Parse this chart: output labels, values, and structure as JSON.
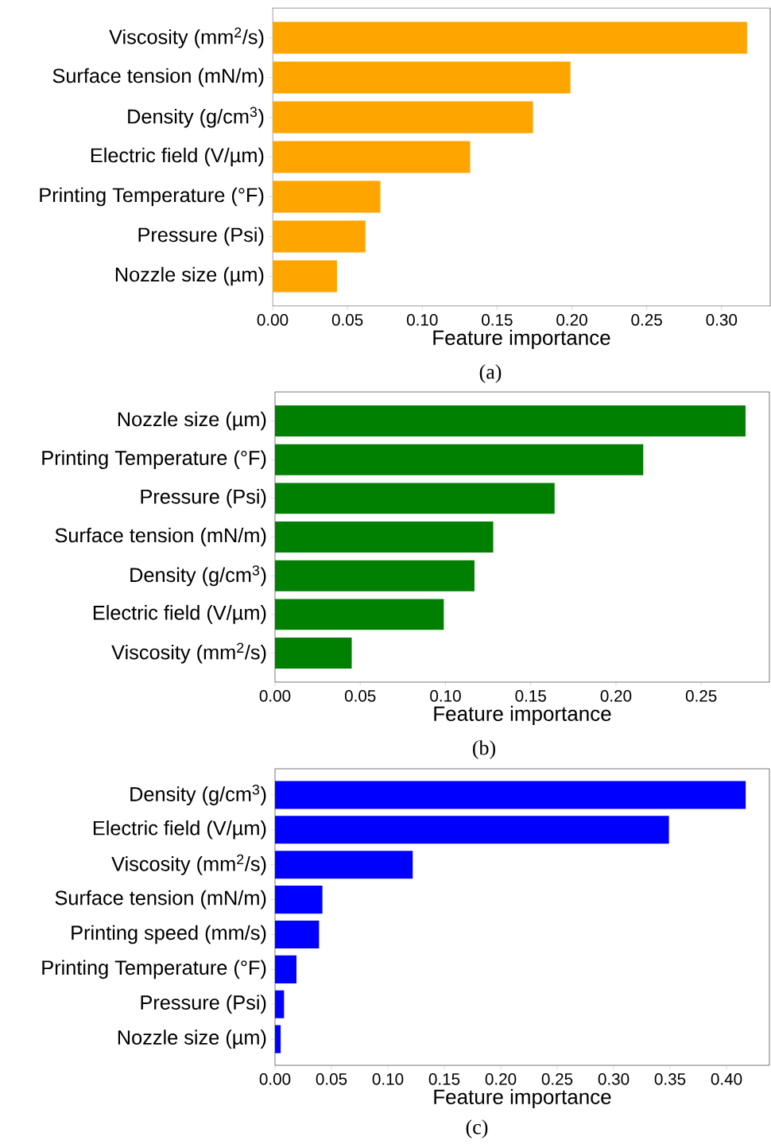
{
  "chart_data": [
    {
      "type": "bar",
      "orientation": "horizontal",
      "color": "#ffa500",
      "xlabel": "Feature importance",
      "annotations": [
        "(a)"
      ],
      "categories": [
        "Viscosity (mm$^{2}$/s)",
        "Surface tension (mN/m)",
        "Density (g/cm$^{3}$)",
        "Electric field (V/µm)",
        "Printing Temperature (°F)",
        "Pressure (Psi)",
        "Nozzle size (µm)"
      ],
      "values": [
        0.317,
        0.199,
        0.174,
        0.132,
        0.072,
        0.062,
        0.043
      ],
      "xlim": [
        0,
        0.3325
      ],
      "xticks": [
        {
          "value": 0,
          "label": "0.00"
        },
        {
          "value": 0.05,
          "label": "0.05"
        },
        {
          "value": 0.1,
          "label": "0.10"
        },
        {
          "value": 0.15,
          "label": "0.15"
        },
        {
          "value": 0.2,
          "label": "0.20"
        },
        {
          "value": 0.25,
          "label": "0.25"
        },
        {
          "value": 0.3,
          "label": "0.30"
        }
      ]
    },
    {
      "type": "bar",
      "orientation": "horizontal",
      "color": "#008000",
      "xlabel": "Feature importance",
      "annotations": [
        "(b)"
      ],
      "categories": [
        "Nozzle size (µm)",
        "Printing Temperature (°F)",
        "Pressure (Psi)",
        "Surface tension (mN/m)",
        "Density (g/cm$^{3}$)",
        "Electric field (V/µm)",
        "Viscosity (mm$^{2}$/s)"
      ],
      "values": [
        0.276,
        0.216,
        0.164,
        0.128,
        0.117,
        0.099,
        0.045
      ],
      "xlim": [
        0,
        0.29
      ],
      "xticks": [
        {
          "value": 0,
          "label": "0.00"
        },
        {
          "value": 0.05,
          "label": "0.05"
        },
        {
          "value": 0.1,
          "label": "0.10"
        },
        {
          "value": 0.15,
          "label": "0.15"
        },
        {
          "value": 0.2,
          "label": "0.20"
        },
        {
          "value": 0.25,
          "label": "0.25"
        }
      ]
    },
    {
      "type": "bar",
      "orientation": "horizontal",
      "color": "#0000ff",
      "xlabel": "Feature importance",
      "annotations": [
        "(c)"
      ],
      "categories": [
        "Density (g/cm$^{3}$)",
        "Electric field (V/µm)",
        "Viscosity (mm$^{2}$/s)",
        "Surface tension (mN/m)",
        "Printing speed (mm/s)",
        "Printing Temperature (°F)",
        "Pressure (Psi)",
        "Nozzle size (µm)"
      ],
      "values": [
        0.417,
        0.349,
        0.122,
        0.042,
        0.039,
        0.019,
        0.008,
        0.005
      ],
      "xlim": [
        0,
        0.438
      ],
      "xticks": [
        {
          "value": 0,
          "label": "0.00"
        },
        {
          "value": 0.05,
          "label": "0.05"
        },
        {
          "value": 0.1,
          "label": "0.10"
        },
        {
          "value": 0.15,
          "label": "0.15"
        },
        {
          "value": 0.2,
          "label": "0.20"
        },
        {
          "value": 0.25,
          "label": "0.25"
        },
        {
          "value": 0.3,
          "label": "0.30"
        },
        {
          "value": 0.35,
          "label": "0.35"
        },
        {
          "value": 0.4,
          "label": "0.40"
        }
      ]
    }
  ]
}
